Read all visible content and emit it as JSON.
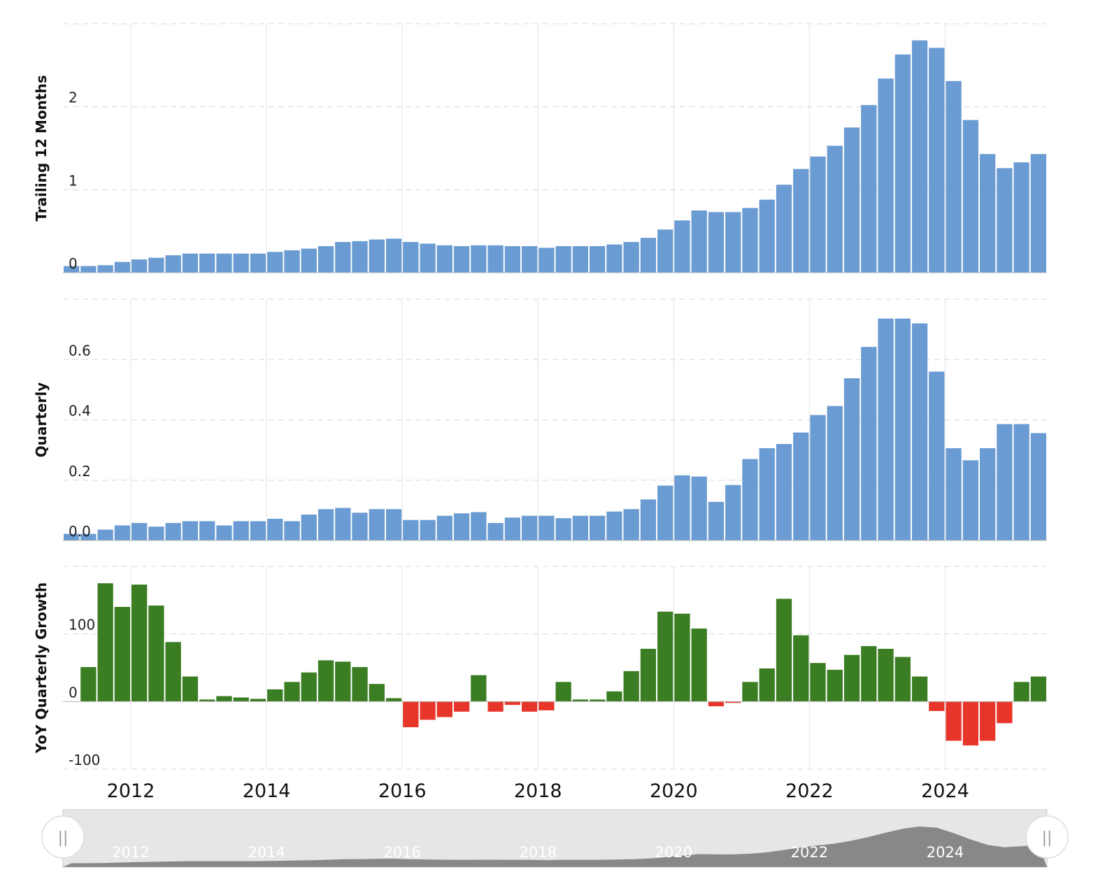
{
  "chart_data": [
    {
      "type": "bar",
      "ylabel": "Trailing 12 Months",
      "yticks": [
        "0",
        "1",
        "2"
      ],
      "yticks_values": [
        0,
        1,
        2
      ],
      "ylim": [
        0,
        3.0
      ],
      "color": "#6a9bd2",
      "x_start": 2011.0,
      "x_step": 0.25,
      "values": [
        0.08,
        0.08,
        0.09,
        0.13,
        0.16,
        0.18,
        0.21,
        0.23,
        0.23,
        0.23,
        0.23,
        0.23,
        0.25,
        0.27,
        0.29,
        0.32,
        0.37,
        0.38,
        0.4,
        0.41,
        0.37,
        0.35,
        0.33,
        0.32,
        0.33,
        0.33,
        0.32,
        0.32,
        0.3,
        0.32,
        0.32,
        0.32,
        0.34,
        0.37,
        0.42,
        0.52,
        0.63,
        0.75,
        0.73,
        0.73,
        0.78,
        0.88,
        1.06,
        1.25,
        1.4,
        1.53,
        1.75,
        2.02,
        2.34,
        2.63,
        2.8,
        2.71,
        2.31,
        1.84,
        1.43,
        1.26,
        1.33,
        1.43
      ]
    },
    {
      "type": "bar",
      "ylabel": "Quarterly",
      "yticks": [
        "0.0",
        "0.2",
        "0.4",
        "0.6"
      ],
      "yticks_values": [
        0,
        0.2,
        0.4,
        0.6
      ],
      "ylim": [
        0,
        0.8
      ],
      "color": "#6a9bd2",
      "x_start": 2011.0,
      "x_step": 0.25,
      "values": [
        0.022,
        0.022,
        0.036,
        0.05,
        0.058,
        0.046,
        0.058,
        0.064,
        0.064,
        0.05,
        0.064,
        0.064,
        0.072,
        0.064,
        0.086,
        0.104,
        0.108,
        0.092,
        0.104,
        0.104,
        0.068,
        0.068,
        0.082,
        0.09,
        0.094,
        0.058,
        0.076,
        0.082,
        0.082,
        0.074,
        0.082,
        0.082,
        0.096,
        0.104,
        0.136,
        0.182,
        0.216,
        0.212,
        0.128,
        0.184,
        0.27,
        0.306,
        0.32,
        0.358,
        0.416,
        0.446,
        0.538,
        0.642,
        0.736,
        0.736,
        0.72,
        0.56,
        0.306,
        0.266,
        0.306,
        0.386,
        0.386,
        0.356
      ]
    },
    {
      "type": "bar",
      "ylabel": "YoY Quarterly Growth",
      "yticks": [
        "-100",
        "0",
        "100"
      ],
      "yticks_values": [
        -100,
        0,
        100
      ],
      "ylim": [
        -100,
        200
      ],
      "positive_color": "#3a7d22",
      "negative_color": "#e8352a",
      "x_start": 2011.0,
      "x_step": 0.25,
      "values": [
        0,
        51,
        175,
        140,
        173,
        142,
        88,
        37,
        3,
        8,
        6,
        4,
        18,
        29,
        43,
        61,
        59,
        51,
        26,
        5,
        -38,
        -27,
        -23,
        -15,
        39,
        -15,
        -5,
        -15,
        -13,
        29,
        3,
        3,
        15,
        45,
        78,
        133,
        130,
        108,
        -7,
        -2,
        29,
        49,
        152,
        98,
        57,
        47,
        69,
        82,
        78,
        66,
        37,
        -14,
        -58,
        -65,
        -58,
        -32,
        29,
        37
      ]
    }
  ],
  "x_axis": {
    "ticks": [
      "2012",
      "2014",
      "2016",
      "2018",
      "2020",
      "2022",
      "2024"
    ],
    "tick_values": [
      2012,
      2014,
      2016,
      2018,
      2020,
      2022,
      2024
    ]
  },
  "navigator": {
    "handle_left_icon": "||",
    "handle_right_icon": "||",
    "background": "#e6e6e6",
    "series_color": "#888888"
  }
}
